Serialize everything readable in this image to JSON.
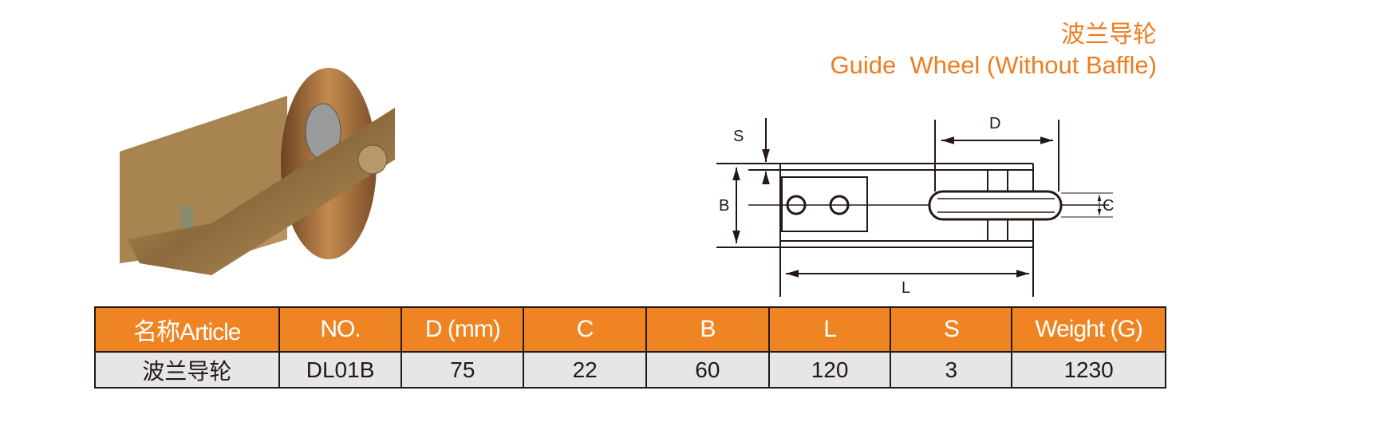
{
  "header": {
    "title_cn": "波兰导轮",
    "title_en": "Guide  Wheel (Without Baffle)"
  },
  "diagram": {
    "labels": {
      "s": "S",
      "b": "B",
      "d": "D",
      "c": "C",
      "l": "L"
    }
  },
  "colors": {
    "accent": "#ef8422",
    "row_bg": "#e6e6e6"
  },
  "table": {
    "headers": [
      "名称Article",
      "NO.",
      "D (mm)",
      "C",
      "B",
      "L",
      "S",
      "Weight (G)"
    ],
    "rows": [
      [
        "波兰导轮",
        "DL01B",
        "75",
        "22",
        "60",
        "120",
        "3",
        "1230"
      ]
    ]
  }
}
